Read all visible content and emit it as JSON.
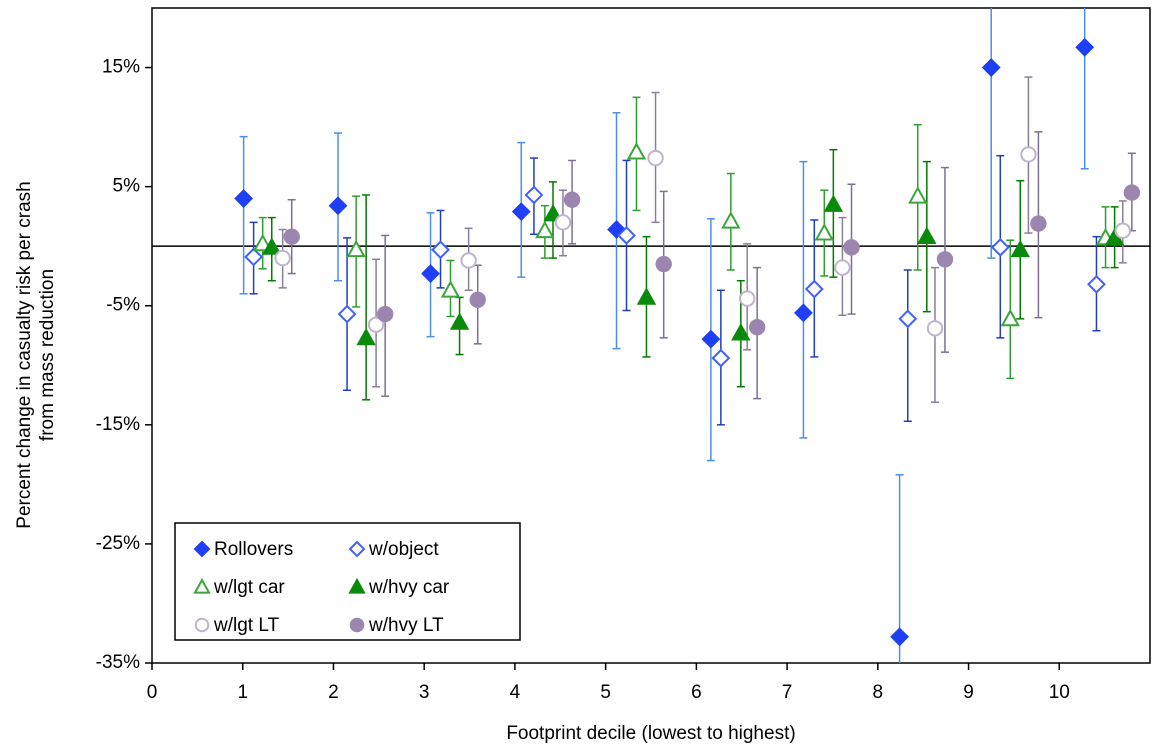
{
  "chart_data": {
    "type": "scatter",
    "ylabel": [
      "Percent change in casualty risk per crash",
      "from mass reduction"
    ],
    "xlabel": "Footprint decile (lowest to highest)",
    "xlim": [
      0,
      11
    ],
    "xticks": [
      0,
      1,
      2,
      3,
      4,
      5,
      6,
      7,
      8,
      9,
      10
    ],
    "ylim": [
      -35,
      20
    ],
    "yticks": [
      {
        "value": -35,
        "label": "-35%"
      },
      {
        "value": -25,
        "label": "-25%"
      },
      {
        "value": -15,
        "label": "-15%"
      },
      {
        "value": -5,
        "label": "-5%"
      },
      {
        "value": 5,
        "label": "5%"
      },
      {
        "value": 15,
        "label": "15%"
      }
    ],
    "reference_line": 0,
    "legend": "lower left",
    "series": [
      {
        "name": "Rollovers",
        "marker": "diamond",
        "filled": true,
        "color": "#1f3ff5",
        "error_color": "#4a90e8",
        "x": [
          1.01,
          2.05,
          3.07,
          4.07,
          5.12,
          6.16,
          7.18,
          8.24,
          9.25,
          10.28
        ],
        "values": [
          4.0,
          3.4,
          -2.3,
          2.9,
          1.4,
          -7.8,
          -5.6,
          -32.8,
          15.0,
          16.7
        ],
        "ci_low": [
          -4.0,
          -2.9,
          -7.6,
          -2.6,
          -8.6,
          -18.0,
          -16.1,
          -37,
          -1.0,
          6.5
        ],
        "ci_high": [
          9.2,
          9.5,
          2.8,
          8.7,
          11.2,
          2.3,
          7.1,
          -19.2,
          26,
          27
        ]
      },
      {
        "name": "w/object",
        "marker": "diamond",
        "filled": false,
        "color": "#4060ff",
        "error_color": "#1f3fbf",
        "x": [
          1.12,
          2.15,
          3.18,
          4.21,
          5.23,
          6.27,
          7.3,
          8.33,
          9.35,
          10.41
        ],
        "values": [
          -0.9,
          -5.7,
          -0.3,
          4.3,
          0.9,
          -9.4,
          -3.6,
          -6.1,
          -0.1,
          -3.2
        ],
        "ci_low": [
          -4.0,
          -12.1,
          -3.5,
          1.0,
          -5.4,
          -15.0,
          -9.3,
          -14.7,
          -7.7,
          -7.1
        ],
        "ci_high": [
          2.0,
          0.7,
          3.0,
          7.4,
          7.2,
          -3.7,
          2.2,
          -2.0,
          7.6,
          0.8
        ]
      },
      {
        "name": "w/lgt car",
        "marker": "triangle",
        "filled": false,
        "color": "#3aa63a",
        "error_color": "#2e9e2e",
        "x": [
          1.22,
          2.25,
          3.29,
          4.33,
          5.34,
          6.38,
          7.41,
          8.44,
          9.46,
          10.51
        ],
        "values": [
          0.2,
          -0.3,
          -3.7,
          1.3,
          7.9,
          2.1,
          1.1,
          4.2,
          -6.1,
          0.7
        ],
        "ci_low": [
          -1.9,
          -5.1,
          -5.9,
          -1.0,
          3.0,
          -2.0,
          -2.5,
          -2.0,
          -11.1,
          -1.8
        ],
        "ci_high": [
          2.4,
          4.2,
          -1.2,
          3.4,
          12.5,
          6.1,
          4.7,
          10.2,
          0.5,
          3.3
        ]
      },
      {
        "name": "w/hvy car",
        "marker": "triangle",
        "filled": true,
        "color": "#0a8a0a",
        "error_color": "#007a00",
        "x": [
          1.32,
          2.36,
          3.39,
          4.42,
          5.45,
          6.49,
          7.51,
          8.54,
          9.57,
          10.61
        ],
        "values": [
          -0.1,
          -7.7,
          -6.4,
          2.7,
          -4.3,
          -7.3,
          3.5,
          0.8,
          -0.3,
          0.7
        ],
        "ci_low": [
          -2.9,
          -12.9,
          -9.1,
          -1.0,
          -9.3,
          -11.8,
          -2.6,
          -5.5,
          -6.1,
          -1.8
        ],
        "ci_high": [
          2.4,
          4.3,
          -4.3,
          5.4,
          0.8,
          -2.9,
          8.1,
          7.1,
          5.5,
          3.3
        ]
      },
      {
        "name": "w/lgt LT",
        "marker": "circle",
        "filled": false,
        "color": "#bfb4cc",
        "error_color": "#8a7f99",
        "x": [
          1.44,
          2.47,
          3.49,
          4.53,
          5.55,
          6.56,
          7.61,
          8.63,
          9.66,
          10.7
        ],
        "values": [
          -1.0,
          -6.6,
          -1.2,
          2.0,
          7.4,
          -4.4,
          -1.8,
          -6.9,
          7.7,
          1.3
        ],
        "ci_low": [
          -3.5,
          -11.8,
          -3.7,
          -0.8,
          2.0,
          -8.7,
          -5.8,
          -13.1,
          1.1,
          -1.4
        ],
        "ci_high": [
          1.4,
          -1.1,
          1.5,
          4.7,
          12.9,
          0.2,
          2.4,
          -1.8,
          14.2,
          3.8
        ]
      },
      {
        "name": "w/hvy LT",
        "marker": "circle",
        "filled": true,
        "color": "#9b86b0",
        "error_color": "#7d7090",
        "x": [
          1.54,
          2.57,
          3.59,
          4.63,
          5.64,
          6.67,
          7.71,
          8.74,
          9.77,
          10.8
        ],
        "values": [
          0.8,
          -5.7,
          -4.5,
          3.9,
          -1.5,
          -6.8,
          -0.1,
          -1.1,
          1.9,
          4.5
        ],
        "ci_low": [
          -2.3,
          -12.6,
          -8.2,
          0.2,
          -7.7,
          -12.8,
          -5.7,
          -8.9,
          -6.0,
          1.3
        ],
        "ci_high": [
          3.9,
          0.9,
          -1.6,
          7.2,
          4.6,
          -1.8,
          5.2,
          6.6,
          9.6,
          7.8
        ]
      }
    ]
  }
}
